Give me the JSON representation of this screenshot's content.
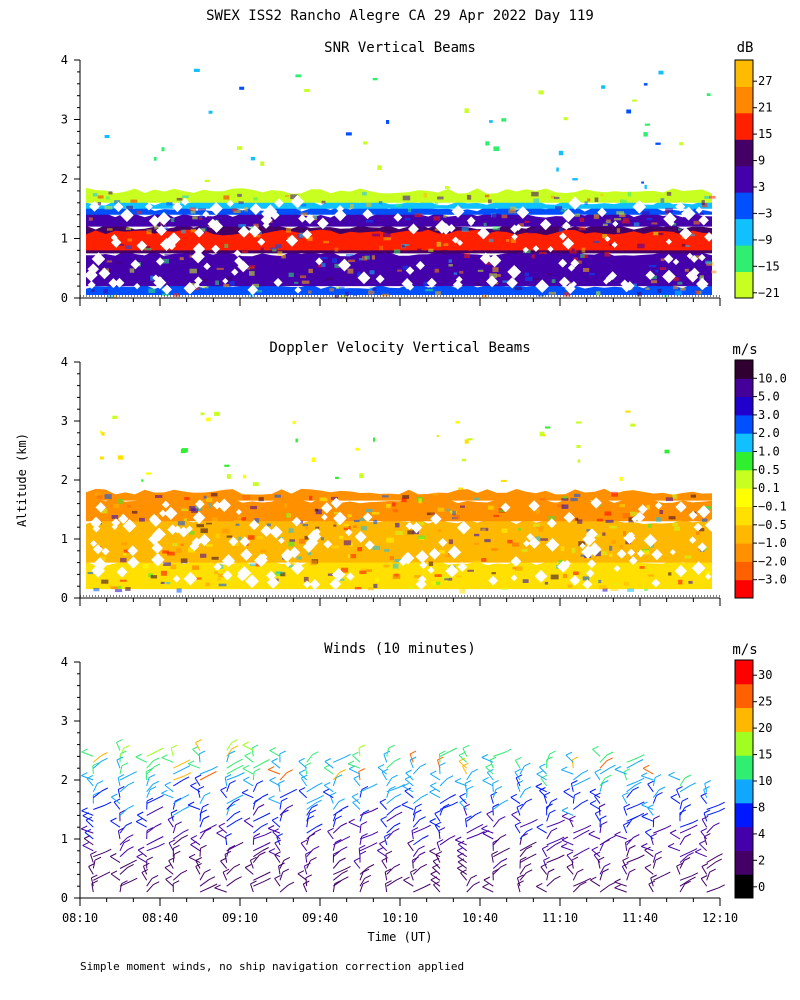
{
  "figure": {
    "title": "SWEX ISS2 Rancho Alegre CA  29 Apr 2022 Day 119",
    "ylabel": "Altitude (km)",
    "xlabel": "Time (UT)",
    "footnote": "Simple moment winds, no ship navigation correction applied"
  },
  "chart_data": [
    {
      "type": "heatmap",
      "title": "SNR Vertical Beams",
      "colorbar_unit": "dB",
      "colorbar_ticks": [
        "27",
        "21",
        "15",
        "9",
        "3",
        "−3",
        "−9",
        "−15",
        "−21"
      ],
      "colorbar_tick_values": [
        27,
        21,
        15,
        9,
        3,
        -3,
        -9,
        -15,
        -21
      ],
      "colorbar_range": [
        -24,
        33
      ],
      "colorbar_colors": [
        "#c8ff20",
        "#30ee70",
        "#10c0ff",
        "#0050ff",
        "#4400aa",
        "#440066",
        "#ff2000",
        "#ff8800",
        "#ffbb00"
      ],
      "y_ticks": [
        "0",
        "1",
        "2",
        "3",
        "4"
      ],
      "ylim": [
        0,
        4
      ],
      "xlim_minutes": [
        490,
        730
      ],
      "x_tick_labels": [],
      "x_tick_minutes": [
        490,
        520,
        550,
        580,
        610,
        640,
        670,
        700,
        730
      ],
      "layers": [
        {
          "alt_from": 0.05,
          "alt_to": 0.2,
          "color": "#0050ff"
        },
        {
          "alt_from": 0.2,
          "alt_to": 0.75,
          "color": "#4400aa"
        },
        {
          "alt_from": 0.75,
          "alt_to": 1.2,
          "color": "#440066"
        },
        {
          "alt_from": 0.8,
          "alt_to": 1.1,
          "color": "#ff2000"
        },
        {
          "alt_from": 1.2,
          "alt_to": 1.4,
          "color": "#4400aa"
        },
        {
          "alt_from": 1.4,
          "alt_to": 1.5,
          "color": "#0050ff"
        },
        {
          "alt_from": 1.5,
          "alt_to": 1.6,
          "color": "#10c0ff"
        },
        {
          "alt_from": 1.6,
          "alt_to": 1.8,
          "color": "#c8ff20"
        }
      ]
    },
    {
      "type": "heatmap",
      "title": "Doppler Velocity Vertical Beams",
      "colorbar_unit": "m/s",
      "colorbar_ticks": [
        "10.0",
        "5.0",
        "3.0",
        "2.0",
        "1.0",
        "0.5",
        "0.1",
        "−0.1",
        "−0.5",
        "−1.0",
        "−2.0",
        "−3.0"
      ],
      "colorbar_colors": [
        "#ff0000",
        "#ff6000",
        "#ff9000",
        "#ffb800",
        "#ffe000",
        "#ffff00",
        "#c8ff20",
        "#30ee30",
        "#10c0ff",
        "#0050ff",
        "#2000cc",
        "#440099",
        "#300030"
      ],
      "y_ticks": [
        "0",
        "1",
        "2",
        "3",
        "4"
      ],
      "ylim": [
        0,
        4
      ],
      "xlim_minutes": [
        490,
        730
      ],
      "x_tick_labels": [],
      "x_tick_minutes": [
        490,
        520,
        550,
        580,
        610,
        640,
        670,
        700,
        730
      ],
      "layers": [
        {
          "alt_from": 0.15,
          "alt_to": 0.6,
          "color": "#ffe000"
        },
        {
          "alt_from": 0.6,
          "alt_to": 1.3,
          "color": "#ffb800"
        },
        {
          "alt_from": 1.3,
          "alt_to": 1.65,
          "color": "#ff9000"
        },
        {
          "alt_from": 1.65,
          "alt_to": 1.8,
          "color": "#ff9000"
        }
      ]
    },
    {
      "type": "scatter",
      "title": "Winds (10 minutes)",
      "colorbar_unit": "m/s",
      "colorbar_ticks": [
        "30",
        "25",
        "20",
        "15",
        "10",
        "8",
        "4",
        "2",
        "0"
      ],
      "colorbar_tick_values": [
        30,
        25,
        20,
        15,
        10,
        8,
        4,
        2,
        0
      ],
      "colorbar_colors": [
        "#000000",
        "#440066",
        "#4400aa",
        "#0018ff",
        "#10a8ff",
        "#30ee70",
        "#a0ff20",
        "#ffb800",
        "#ff6000",
        "#ff0000"
      ],
      "y_ticks": [
        "0",
        "1",
        "2",
        "3",
        "4"
      ],
      "ylim": [
        0,
        4
      ],
      "xlim_minutes": [
        490,
        730
      ],
      "x_tick_labels": [
        "08:10",
        "08:40",
        "09:10",
        "09:40",
        "10:10",
        "10:40",
        "11:10",
        "11:40",
        "12:10"
      ],
      "x_tick_minutes": [
        490,
        520,
        550,
        580,
        610,
        640,
        670,
        700,
        730
      ],
      "profile_interval_minutes": 10,
      "profile_times_minutes": [
        495,
        505,
        515,
        525,
        535,
        545,
        555,
        565,
        575,
        585,
        595,
        605,
        615,
        625,
        635,
        645,
        655,
        665,
        675,
        685,
        695,
        705,
        715,
        725
      ],
      "top_altitude_km": [
        2.45,
        2.55,
        2.45,
        2.5,
        2.55,
        2.6,
        2.55,
        2.5,
        2.35,
        2.4,
        2.45,
        2.5,
        2.4,
        2.5,
        2.45,
        2.45,
        2.3,
        2.35,
        2.4,
        2.45,
        2.35,
        2.2,
        2.1,
        1.9
      ]
    }
  ]
}
